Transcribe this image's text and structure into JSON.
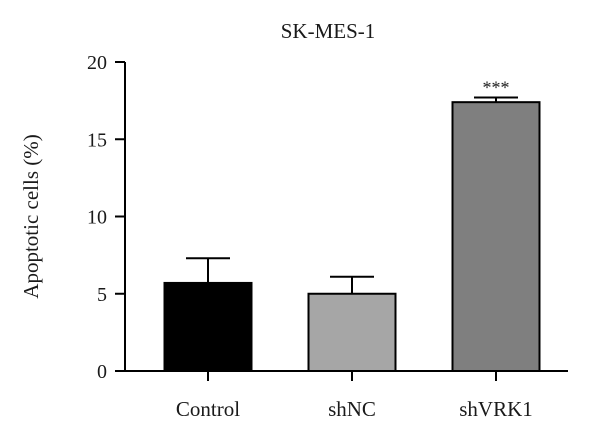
{
  "chart_data": {
    "type": "bar",
    "title": "SK-MES-1",
    "xlabel": "",
    "ylabel": "Apoptotic cells (%)",
    "ylim": [
      0,
      20
    ],
    "yticks": [
      0,
      5,
      10,
      15,
      20
    ],
    "categories": [
      "Control",
      "shNC",
      "shVRK1"
    ],
    "values": [
      5.7,
      5.0,
      17.4
    ],
    "errors": [
      1.6,
      1.1,
      0.3
    ],
    "significance": [
      "",
      "",
      "***"
    ],
    "colors": [
      "#000000",
      "#a6a6a6",
      "#7f7f7f"
    ],
    "grid": false,
    "legend": "none"
  }
}
